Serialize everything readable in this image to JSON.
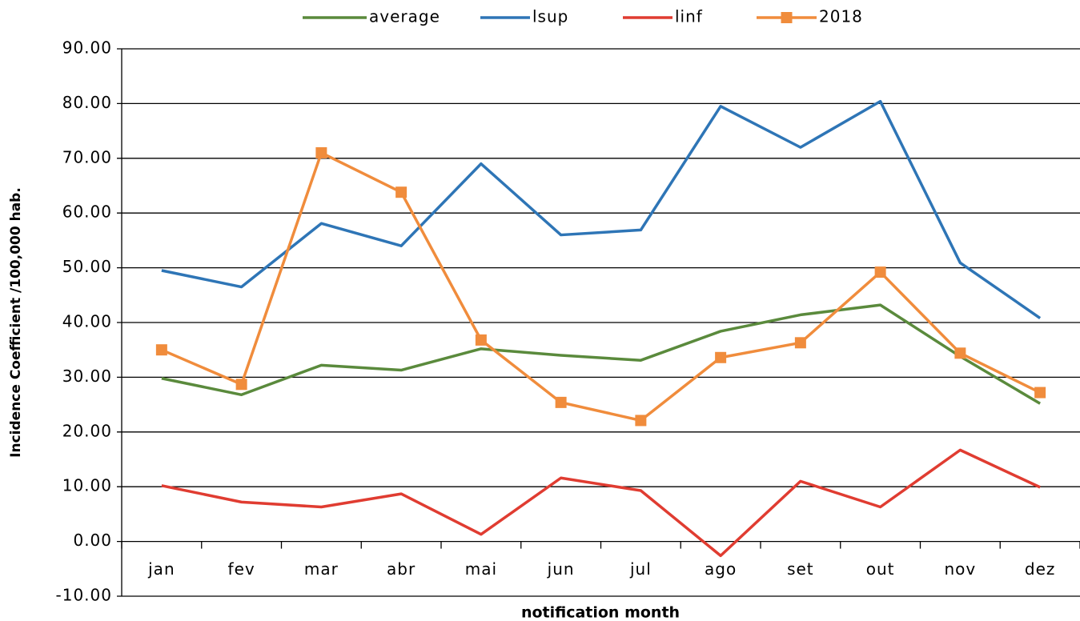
{
  "chart_data": {
    "type": "line",
    "y_label": "Incidence  Coefficient /100,000 hab.",
    "x_label": "notification month",
    "categories": [
      "jan",
      "fev",
      "mar",
      "abr",
      "mai",
      "jun",
      "jul",
      "ago",
      "set",
      "out",
      "nov",
      "dez"
    ],
    "series": [
      {
        "name": "average",
        "color": "#5a8a3c",
        "values": [
          29.8,
          26.8,
          32.2,
          31.3,
          35.2,
          34.0,
          33.1,
          38.4,
          41.4,
          43.2,
          33.8,
          25.2
        ]
      },
      {
        "name": "lsup",
        "color": "#2e75b6",
        "values": [
          49.5,
          46.5,
          58.1,
          54.0,
          69.0,
          56.0,
          56.9,
          79.5,
          72.0,
          80.4,
          50.9,
          40.8
        ]
      },
      {
        "name": "linf",
        "color": "#e03c31",
        "values": [
          10.2,
          7.2,
          6.3,
          8.7,
          1.3,
          11.6,
          9.3,
          -2.6,
          11.0,
          6.3,
          16.7,
          9.9
        ]
      },
      {
        "name": "2018",
        "color": "#f08c3c",
        "marker": "square",
        "values": [
          35.0,
          28.7,
          71.0,
          63.8,
          36.8,
          25.4,
          22.1,
          33.6,
          36.3,
          49.2,
          34.4,
          27.2
        ]
      }
    ],
    "ylim": [
      -10,
      90
    ],
    "yticks": [
      {
        "value": -10,
        "label": "-10.00"
      },
      {
        "value": 0,
        "label": "0.00"
      },
      {
        "value": 10,
        "label": "10.00"
      },
      {
        "value": 20,
        "label": "20.00"
      },
      {
        "value": 30,
        "label": "30.00"
      },
      {
        "value": 40,
        "label": "40.00"
      },
      {
        "value": 50,
        "label": "50.00"
      },
      {
        "value": 60,
        "label": "60.00"
      },
      {
        "value": 70,
        "label": "70.00"
      },
      {
        "value": 80,
        "label": "80.00"
      },
      {
        "value": 90,
        "label": "90.00"
      }
    ],
    "grid": true,
    "legend": "top"
  }
}
